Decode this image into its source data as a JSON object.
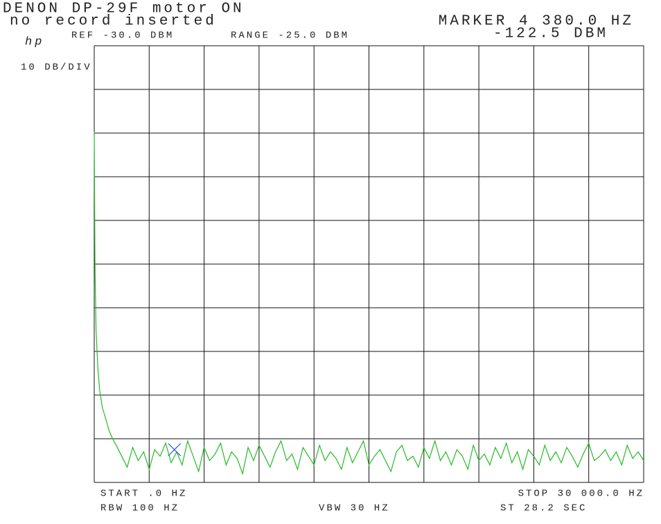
{
  "chart_data": {
    "type": "line",
    "title": "DENON DP-29F motor ON",
    "subtitle": "no record inserted",
    "logo": "hp",
    "ref_label": "REF -30.0 DBM",
    "range_label": "RANGE -25.0 DBM",
    "scale_label": "10 DB/DIV",
    "start_label": "START .0 HZ",
    "stop_label": "STOP 30 000.0 HZ",
    "rbw_label": "RBW 100 HZ",
    "vbw_label": "VBW 30 HZ",
    "sweep_label": "ST 28.2 SEC",
    "marker": {
      "x": 4380,
      "y": -122.5,
      "label": "MARKER 4 380.0 HZ",
      "value_label": "-122.5 DBM",
      "color": "#3355cc"
    },
    "xlim": [
      0,
      30000
    ],
    "ylim": [
      -130,
      -30
    ],
    "xticks": [
      0,
      3000,
      6000,
      9000,
      12000,
      15000,
      18000,
      21000,
      24000,
      27000,
      30000
    ],
    "yticks": [
      -130,
      -120,
      -110,
      -100,
      -90,
      -80,
      -70,
      -60,
      -50,
      -40,
      -30
    ],
    "grid": true,
    "x": [
      0,
      40,
      100,
      200,
      300,
      450,
      600,
      800,
      1000,
      1200,
      1500,
      1800,
      2100,
      2400,
      2700,
      3000,
      3300,
      3600,
      3900,
      4200,
      4500,
      4800,
      5100,
      5400,
      5700,
      6000,
      6300,
      6600,
      6900,
      7200,
      7500,
      7800,
      8100,
      8400,
      8700,
      9000,
      9300,
      9600,
      9900,
      10200,
      10500,
      10800,
      11100,
      11400,
      11700,
      12000,
      12300,
      12600,
      12900,
      13200,
      13500,
      13800,
      14100,
      14400,
      14700,
      15000,
      15300,
      15600,
      15900,
      16200,
      16500,
      16800,
      17100,
      17400,
      17700,
      18000,
      18300,
      18600,
      18900,
      19200,
      19500,
      19800,
      20100,
      20400,
      20700,
      21000,
      21300,
      21600,
      21900,
      22200,
      22500,
      22800,
      23100,
      23400,
      23700,
      24000,
      24300,
      24600,
      24900,
      25200,
      25500,
      25800,
      26100,
      26400,
      26700,
      27000,
      27300,
      27600,
      27900,
      28200,
      28500,
      28800,
      29100,
      29400,
      29700,
      30000
    ],
    "series": [
      {
        "color": "#22bb22",
        "values": [
          -49.7,
          -80,
          -95,
          -104,
          -109,
          -113,
          -115,
          -118,
          -120,
          -121.5,
          -124,
          -126.5,
          -122,
          -125,
          -123,
          -127,
          -122.5,
          -124,
          -121,
          -125.5,
          -123,
          -126,
          -120.5,
          -124,
          -127.5,
          -122,
          -125,
          -123.5,
          -121,
          -126,
          -123,
          -124.5,
          -128,
          -122,
          -125,
          -121.5,
          -124,
          -126.5,
          -123,
          -120.5,
          -125,
          -123.5,
          -127,
          -122,
          -124,
          -126,
          -121.5,
          -125,
          -123,
          -124.5,
          -127,
          -122,
          -125.5,
          -123,
          -120.5,
          -126,
          -124,
          -122.5,
          -125,
          -127.5,
          -123,
          -121.5,
          -125,
          -124,
          -126.5,
          -122,
          -124.5,
          -120.5,
          -125,
          -123,
          -126,
          -122.5,
          -124,
          -127,
          -121.5,
          -125,
          -123.5,
          -126,
          -122,
          -124.5,
          -121,
          -125.5,
          -123,
          -127,
          -122.5,
          -124,
          -126,
          -121.5,
          -125,
          -123,
          -125.5,
          -122,
          -124,
          -126.5,
          -123.5,
          -121,
          -125,
          -124,
          -122.5,
          -125,
          -123,
          -126,
          -121.5,
          -124.5,
          -123,
          -125
        ]
      }
    ]
  }
}
